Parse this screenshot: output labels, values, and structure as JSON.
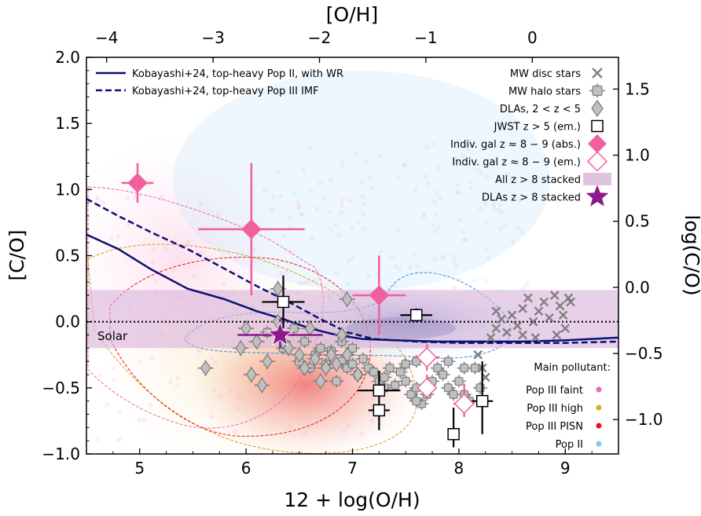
{
  "chart_data": {
    "type": "scatter",
    "xlabel": "12 + log(O/H)",
    "ylabel": "[C/O]",
    "top_xlabel": "[O/H]",
    "right_ylabel": "log(C/O)",
    "xlim": [
      4.5,
      9.5
    ],
    "ylim": [
      -1.0,
      2.0
    ],
    "x_ticks": [
      5,
      6,
      7,
      8,
      9
    ],
    "y_ticks": [
      -1.0,
      -0.5,
      0.0,
      0.5,
      1.0,
      1.5,
      2.0
    ],
    "top_ticks": [
      {
        "value": -4,
        "label": "−4"
      },
      {
        "value": -3,
        "label": "−3"
      },
      {
        "value": -2,
        "label": "−2"
      },
      {
        "value": -1,
        "label": "−1"
      },
      {
        "value": 0,
        "label": "0"
      }
    ],
    "top_axis_offset": 8.69,
    "right_ticks": [
      {
        "value": 1.5,
        "label": "1.5"
      },
      {
        "value": 1.0,
        "label": "1.0"
      },
      {
        "value": 0.5,
        "label": "0.5"
      },
      {
        "value": 0.0,
        "label": "0.0"
      },
      {
        "value": -0.5,
        "label": "−0.5"
      },
      {
        "value": -1.0,
        "label": "−1.0"
      }
    ],
    "right_axis_offset": -0.26,
    "solar_label": "Solar",
    "stacked_band": {
      "y": [
        -0.2,
        0.24
      ],
      "color": "#d9b3d9"
    },
    "models": [
      {
        "name": "Kobayashi+24, top-heavy Pop II, with WR",
        "style": "solid",
        "color": "#0a1172",
        "points": [
          [
            4.5,
            0.66
          ],
          [
            4.8,
            0.55
          ],
          [
            5.1,
            0.4
          ],
          [
            5.45,
            0.25
          ],
          [
            5.8,
            0.17
          ],
          [
            6.1,
            0.08
          ],
          [
            6.35,
            0.02
          ],
          [
            6.6,
            -0.05
          ],
          [
            6.85,
            -0.1
          ],
          [
            7.1,
            -0.13
          ],
          [
            7.4,
            -0.14
          ],
          [
            7.8,
            -0.15
          ],
          [
            8.2,
            -0.15
          ],
          [
            8.6,
            -0.15
          ],
          [
            9.0,
            -0.14
          ],
          [
            9.5,
            -0.12
          ]
        ]
      },
      {
        "name": "Kobayashi+24, top-heavy Pop III IMF",
        "style": "dashed",
        "color": "#0a1172",
        "points": [
          [
            4.5,
            0.93
          ],
          [
            4.8,
            0.8
          ],
          [
            5.1,
            0.68
          ],
          [
            5.45,
            0.55
          ],
          [
            5.8,
            0.4
          ],
          [
            6.1,
            0.27
          ],
          [
            6.4,
            0.15
          ],
          [
            6.7,
            0.02
          ],
          [
            6.95,
            -0.08
          ],
          [
            7.2,
            -0.13
          ],
          [
            7.6,
            -0.15
          ],
          [
            8.0,
            -0.16
          ],
          [
            8.5,
            -0.16
          ],
          [
            9.0,
            -0.16
          ],
          [
            9.5,
            -0.15
          ]
        ]
      }
    ],
    "legend_right": [
      {
        "label": "MW disc stars",
        "marker": "x"
      },
      {
        "label": "MW halo stars",
        "marker": "gray-square"
      },
      {
        "label": "DLAs, 2 < z < 5",
        "marker": "gray-diamond"
      },
      {
        "label": "JWST z > 5 (em.)",
        "marker": "open-square"
      },
      {
        "label": "Indiv. gal z ≈ 8 − 9 (abs.)",
        "marker": "pink-diamond"
      },
      {
        "label": "Indiv. gal z ≈ 8 − 9 (em.)",
        "marker": "open-pink-diamond"
      },
      {
        "label": "All z > 8 stacked",
        "marker": "band"
      },
      {
        "label": "DLAs z > 8 stacked",
        "marker": "star"
      }
    ],
    "pollutant_title": "Main pollutant:",
    "pollutants": [
      {
        "label": "Pop III faint",
        "color": "#ee66bb"
      },
      {
        "label": "Pop III high",
        "color": "#ddaa22"
      },
      {
        "label": "Pop III PISN",
        "color": "#ee1111"
      },
      {
        "label": "Pop II",
        "color": "#77ccee"
      }
    ],
    "mw_disc": [
      [
        8.18,
        -0.25
      ],
      [
        8.22,
        -0.35
      ],
      [
        8.25,
        -0.42
      ],
      [
        8.3,
        -0.12
      ],
      [
        8.35,
        -0.05
      ],
      [
        8.4,
        0.02
      ],
      [
        8.45,
        -0.08
      ],
      [
        8.5,
        0.05
      ],
      [
        8.55,
        -0.03
      ],
      [
        8.6,
        0.1
      ],
      [
        8.65,
        0.18
      ],
      [
        8.7,
        0.0
      ],
      [
        8.72,
        -0.12
      ],
      [
        8.75,
        0.08
      ],
      [
        8.8,
        0.15
      ],
      [
        8.85,
        0.03
      ],
      [
        8.9,
        0.2
      ],
      [
        8.92,
        -0.1
      ],
      [
        8.95,
        0.12
      ],
      [
        8.98,
        0.05
      ],
      [
        9.0,
        -0.05
      ],
      [
        9.03,
        0.18
      ],
      [
        9.05,
        0.15
      ],
      [
        8.6,
        -0.1
      ],
      [
        8.35,
        0.08
      ]
    ],
    "mw_halo": [
      [
        6.2,
        -0.08
      ],
      [
        6.35,
        -0.2
      ],
      [
        6.45,
        -0.05
      ],
      [
        6.5,
        -0.3
      ],
      [
        6.55,
        -0.15
      ],
      [
        6.6,
        -0.35
      ],
      [
        6.65,
        -0.25
      ],
      [
        6.7,
        -0.2
      ],
      [
        6.75,
        -0.32
      ],
      [
        6.8,
        -0.22
      ],
      [
        6.85,
        -0.45
      ],
      [
        6.9,
        -0.3
      ],
      [
        6.95,
        -0.35
      ],
      [
        7.0,
        -0.32
      ],
      [
        7.05,
        -0.4
      ],
      [
        7.1,
        -0.28
      ],
      [
        7.15,
        -0.35
      ],
      [
        7.2,
        -0.38
      ],
      [
        7.25,
        -0.45
      ],
      [
        7.3,
        -0.42
      ],
      [
        7.35,
        -0.35
      ],
      [
        7.4,
        -0.48
      ],
      [
        7.45,
        -0.38
      ],
      [
        7.5,
        -0.45
      ],
      [
        7.55,
        -0.55
      ],
      [
        7.6,
        -0.5
      ],
      [
        7.65,
        -0.62
      ],
      [
        7.7,
        -0.55
      ],
      [
        7.75,
        -0.45
      ],
      [
        7.8,
        -0.35
      ],
      [
        7.85,
        -0.4
      ],
      [
        7.9,
        -0.5
      ],
      [
        7.95,
        -0.55
      ],
      [
        8.0,
        -0.45
      ],
      [
        8.05,
        -0.55
      ],
      [
        8.1,
        -0.6
      ],
      [
        8.15,
        -0.35
      ],
      [
        8.2,
        -0.5
      ],
      [
        7.5,
        -0.32
      ],
      [
        7.6,
        -0.3
      ],
      [
        7.9,
        -0.3
      ],
      [
        8.05,
        -0.35
      ],
      [
        6.9,
        -0.15
      ],
      [
        7.0,
        -0.2
      ],
      [
        7.6,
        -0.6
      ],
      [
        7.3,
        -0.5
      ]
    ],
    "dlas": [
      [
        5.62,
        -0.35
      ],
      [
        5.95,
        -0.2
      ],
      [
        6.0,
        -0.05
      ],
      [
        6.05,
        -0.4
      ],
      [
        6.1,
        -0.15
      ],
      [
        6.15,
        -0.48
      ],
      [
        6.2,
        -0.3
      ],
      [
        6.3,
        0.25
      ],
      [
        6.35,
        -0.15
      ],
      [
        6.4,
        -0.2
      ],
      [
        6.5,
        -0.25
      ],
      [
        6.55,
        -0.35
      ],
      [
        6.6,
        -0.05
      ],
      [
        6.65,
        -0.28
      ],
      [
        6.7,
        -0.45
      ],
      [
        6.75,
        -0.35
      ],
      [
        6.8,
        -0.25
      ],
      [
        6.85,
        -0.32
      ],
      [
        6.9,
        -0.1
      ],
      [
        6.95,
        -0.25
      ],
      [
        7.05,
        -0.4
      ],
      [
        6.95,
        0.17
      ],
      [
        6.3,
        0.0
      ]
    ],
    "jwst_em": [
      {
        "x": 6.35,
        "y": 0.15,
        "xerr": 0.2,
        "yerr": [
          0.2,
          0.2
        ]
      },
      {
        "x": 7.6,
        "y": 0.05,
        "xerr": 0.15,
        "yerr": [
          0.05,
          0.05
        ]
      },
      {
        "x": 7.25,
        "y": -0.52,
        "xerr": 0.2,
        "yerr": [
          0.1,
          0.15
        ]
      },
      {
        "x": 7.25,
        "y": -0.67,
        "xerr": 0.1,
        "yerr": [
          0.15,
          0.05
        ]
      },
      {
        "x": 7.95,
        "y": -0.85,
        "xerr": 0.05,
        "yerr": [
          0.1,
          0.2
        ]
      },
      {
        "x": 8.22,
        "y": -0.6,
        "xerr": 0.1,
        "yerr": [
          0.25,
          0.3
        ]
      }
    ],
    "gal_abs": [
      {
        "x": 4.98,
        "y": 1.05,
        "xerr": 0.15,
        "yerr": [
          0.15,
          0.15
        ]
      },
      {
        "x": 6.05,
        "y": 0.7,
        "xerr": 0.5,
        "yerr": [
          0.5,
          0.5
        ]
      },
      {
        "x": 7.25,
        "y": 0.2,
        "xerr": 0.25,
        "yerr": [
          0.3,
          0.3
        ]
      }
    ],
    "gal_em": [
      {
        "x": 7.7,
        "y": -0.27,
        "xerr": 0.12,
        "yerr": [
          0.1,
          0.1
        ]
      },
      {
        "x": 7.7,
        "y": -0.5,
        "xerr": 0.08,
        "yerr": [
          0.08,
          0.1
        ]
      },
      {
        "x": 8.05,
        "y": -0.62,
        "xerr": 0.1,
        "yerr": [
          0.1,
          0.15
        ]
      }
    ],
    "dla_stacked": {
      "x": 6.32,
      "y": -0.1,
      "xerr": 0.4,
      "yerr": [
        0.1,
        0.12
      ]
    },
    "colors": {
      "model": "#0a1172",
      "gal": "#f0609e",
      "star": "#8b1a8b",
      "gray_fill": "#c0c0c0",
      "gray_edge": "#7a7a7a",
      "solar_line": "#000000"
    }
  }
}
